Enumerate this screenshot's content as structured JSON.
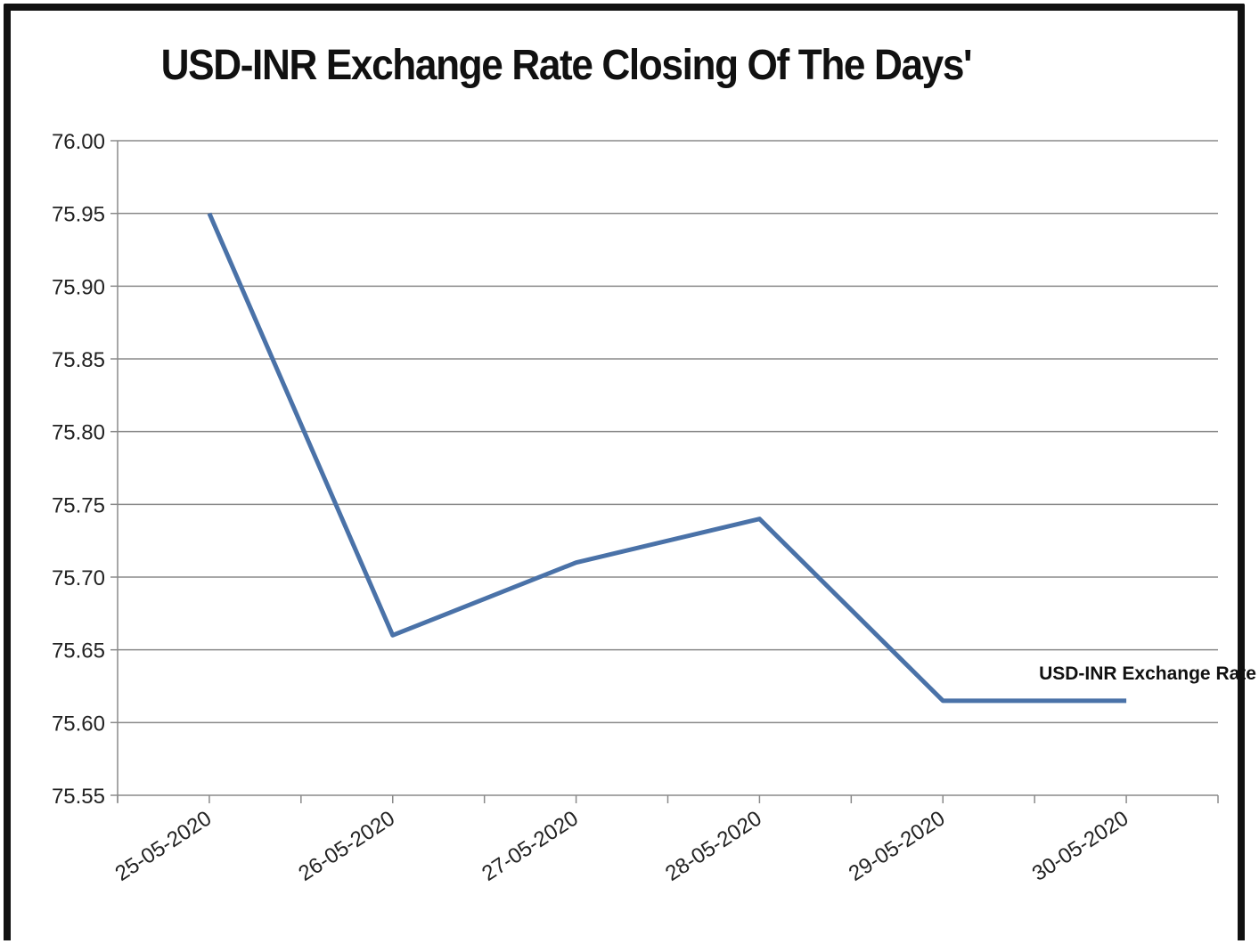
{
  "chart_data": {
    "type": "line",
    "title": "USD-INR Exchange Rate Closing Of The Days'",
    "xlabel": "",
    "ylabel": "",
    "ylim": [
      75.55,
      76.0
    ],
    "ytick_step": 0.05,
    "yticks": [
      "76.00",
      "75.95",
      "75.90",
      "75.85",
      "75.80",
      "75.75",
      "75.70",
      "75.65",
      "75.60",
      "75.55"
    ],
    "categories": [
      "25-05-2020",
      "26-05-2020",
      "27-05-2020",
      "28-05-2020",
      "29-05-2020",
      "30-05-2020"
    ],
    "series": [
      {
        "name": "USD-INR Exchange Rate",
        "values": [
          75.95,
          75.66,
          75.71,
          75.74,
          75.615,
          75.615
        ],
        "color": "#4a72a8"
      }
    ],
    "grid": true,
    "legend": "inline-label-right"
  }
}
